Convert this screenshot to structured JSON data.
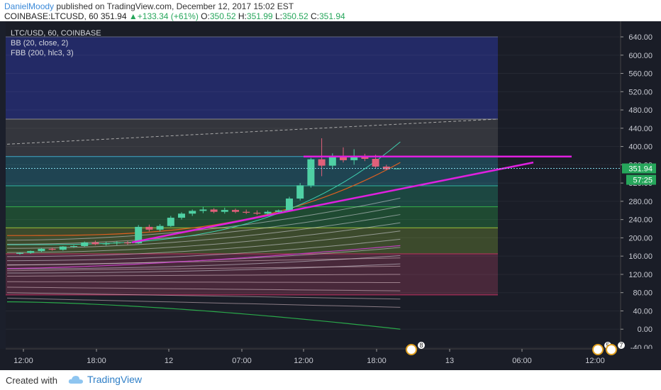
{
  "header": {
    "author": "DanielMoody",
    "published_text": "published on TradingView.com, December 12, 2017 15:02 EST",
    "symbol": "COINBASE:LTCUSD, 60",
    "last": "351.94",
    "change": "+133.34 (+61%)",
    "o_label": "O:",
    "o": "350.52",
    "h_label": "H:",
    "h": "351.99",
    "l_label": "L:",
    "l": "350.52",
    "c_label": "C:",
    "c": "351.94"
  },
  "legend": {
    "line1": "LTC/USD, 60, COINBASE",
    "line2": "BB (20, close, 2)",
    "line3": "FBB (200, hlc3, 3)"
  },
  "footer": {
    "created": "Created with",
    "brand": "TradingView"
  },
  "colors": {
    "bull": "#4fd1a4",
    "bear": "#e0607a",
    "magenta": "#e020e0",
    "price_tag": "#26a65b"
  },
  "chart_data": {
    "type": "candlestick",
    "price_tag": "351.94",
    "countdown_tag": "57:25",
    "ylim": [
      -55,
      665
    ],
    "y_ticks": [
      640,
      600,
      560,
      520,
      480,
      440,
      400,
      360,
      320,
      280,
      240,
      200,
      160,
      120,
      80,
      40,
      0,
      -40
    ],
    "y_tick_labels": [
      "640.00",
      "600.00",
      "560.00",
      "520.00",
      "480.00",
      "440.00",
      "400.00",
      "360.00",
      "320.00",
      "280.00",
      "240.00",
      "200.00",
      "160.00",
      "120.00",
      "80.00",
      "40.00",
      "0.00",
      "-40.00"
    ],
    "x_ticks": [
      "12:00",
      "18:00",
      "12",
      "07:00",
      "12:00",
      "18:00",
      "13",
      "06:00",
      "12:00"
    ],
    "fib_band_levels": [
      640,
      460,
      378,
      314,
      268,
      222,
      165,
      75
    ],
    "candles": [
      {
        "o": 165,
        "h": 168,
        "l": 163,
        "c": 167
      },
      {
        "o": 167,
        "h": 172,
        "l": 165,
        "c": 171
      },
      {
        "o": 171,
        "h": 178,
        "l": 169,
        "c": 176
      },
      {
        "o": 176,
        "h": 179,
        "l": 172,
        "c": 174
      },
      {
        "o": 174,
        "h": 182,
        "l": 172,
        "c": 181
      },
      {
        "o": 181,
        "h": 184,
        "l": 178,
        "c": 182
      },
      {
        "o": 182,
        "h": 192,
        "l": 180,
        "c": 190
      },
      {
        "o": 190,
        "h": 194,
        "l": 184,
        "c": 186
      },
      {
        "o": 186,
        "h": 192,
        "l": 183,
        "c": 188
      },
      {
        "o": 188,
        "h": 193,
        "l": 184,
        "c": 190
      },
      {
        "o": 190,
        "h": 193,
        "l": 185,
        "c": 188
      },
      {
        "o": 188,
        "h": 228,
        "l": 187,
        "c": 224
      },
      {
        "o": 224,
        "h": 229,
        "l": 214,
        "c": 218
      },
      {
        "o": 218,
        "h": 230,
        "l": 214,
        "c": 226
      },
      {
        "o": 226,
        "h": 248,
        "l": 224,
        "c": 244
      },
      {
        "o": 244,
        "h": 256,
        "l": 240,
        "c": 253
      },
      {
        "o": 253,
        "h": 262,
        "l": 248,
        "c": 259
      },
      {
        "o": 259,
        "h": 268,
        "l": 254,
        "c": 262
      },
      {
        "o": 262,
        "h": 265,
        "l": 254,
        "c": 257
      },
      {
        "o": 257,
        "h": 266,
        "l": 253,
        "c": 261
      },
      {
        "o": 261,
        "h": 264,
        "l": 254,
        "c": 257
      },
      {
        "o": 257,
        "h": 262,
        "l": 252,
        "c": 255
      },
      {
        "o": 255,
        "h": 260,
        "l": 250,
        "c": 253
      },
      {
        "o": 253,
        "h": 260,
        "l": 250,
        "c": 257
      },
      {
        "o": 257,
        "h": 262,
        "l": 253,
        "c": 260
      },
      {
        "o": 260,
        "h": 290,
        "l": 258,
        "c": 286
      },
      {
        "o": 286,
        "h": 320,
        "l": 282,
        "c": 315
      },
      {
        "o": 315,
        "h": 375,
        "l": 310,
        "c": 372
      },
      {
        "o": 372,
        "h": 418,
        "l": 335,
        "c": 358
      },
      {
        "o": 358,
        "h": 385,
        "l": 350,
        "c": 378
      },
      {
        "o": 378,
        "h": 398,
        "l": 365,
        "c": 370
      },
      {
        "o": 370,
        "h": 394,
        "l": 360,
        "c": 378
      },
      {
        "o": 378,
        "h": 384,
        "l": 368,
        "c": 373
      },
      {
        "o": 373,
        "h": 382,
        "l": 352,
        "c": 356
      },
      {
        "o": 356,
        "h": 360,
        "l": 348,
        "c": 350
      },
      {
        "o": 350.52,
        "h": 351.99,
        "l": 350.52,
        "c": 351.94
      }
    ]
  }
}
